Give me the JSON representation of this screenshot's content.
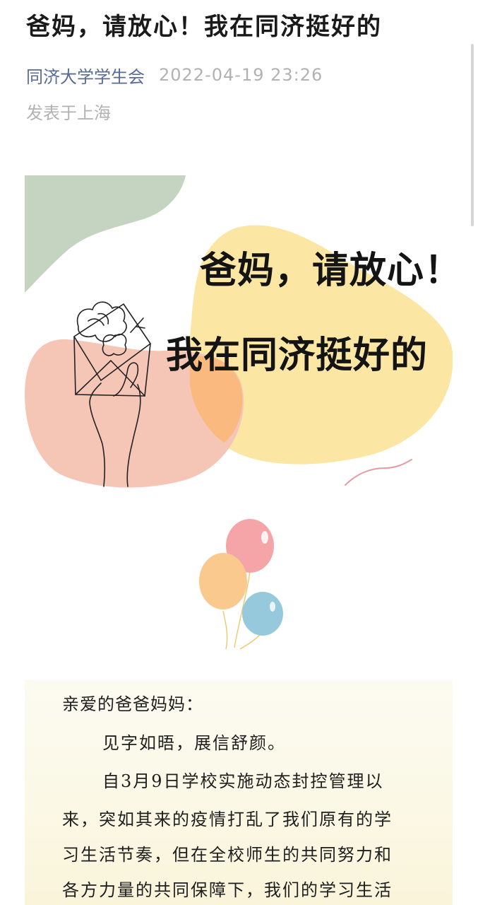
{
  "article": {
    "title": "爸妈，请放心！我在同济挺好的",
    "account_name": "同济大学学生会",
    "publish_time": "2022-04-19 23:26",
    "location": "发表于上海"
  },
  "cover": {
    "line1": "爸妈，请放心！",
    "line2": "我在同济挺好的",
    "colors": {
      "green_blob": "#c5d4c0",
      "yellow_blob": "#fbe6a4",
      "pink_blob": "#f5c6b6",
      "orange_overlap": "#f9b97f"
    }
  },
  "balloons": {
    "colors": [
      "#f5a4a8",
      "#f9c98e",
      "#97c9dc"
    ]
  },
  "letter": {
    "greeting": "亲爱的爸爸妈妈：",
    "lines": [
      "见字如晤，展信舒颜。",
      "自3月9日学校实施动态封控管理以",
      "来，突如其来的疫情打乱了我们原有的学",
      "习生活节奏，但在全校师生的共同努力和",
      "各方力量的共同保障下，我们的学习生活"
    ]
  }
}
